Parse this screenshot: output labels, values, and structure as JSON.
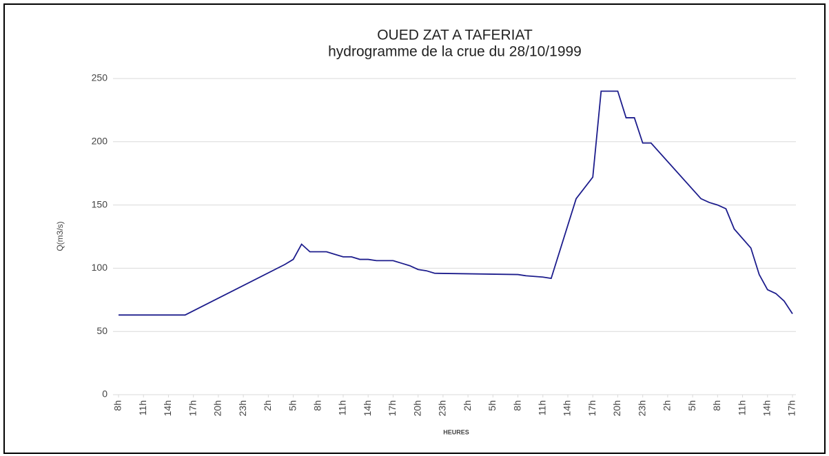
{
  "chart_data": {
    "type": "line",
    "title": "OUED ZAT A TAFERIAT",
    "subtitle": "hydrogramme de la crue du 28/10/1999",
    "x_label": "HEURES",
    "y_label": "Q(m3/s)",
    "x": [
      0,
      8,
      20,
      21,
      22,
      23,
      25,
      26,
      27,
      28,
      29,
      30,
      31,
      33,
      34,
      35,
      36,
      37,
      38,
      48,
      49,
      51,
      52,
      55,
      57,
      58,
      60,
      61,
      62,
      63,
      64,
      70,
      71,
      72,
      73,
      74,
      76,
      77,
      78,
      79,
      80,
      81
    ],
    "series": [
      {
        "name": "Q",
        "color": "#1c1c8c",
        "values": [
          63,
          63,
          103,
          107,
          119,
          113,
          113,
          111,
          109,
          109,
          107,
          107,
          106,
          106,
          104,
          102,
          99,
          98,
          96,
          95,
          94,
          93,
          92,
          155,
          172,
          240,
          240,
          219,
          219,
          199,
          199,
          155,
          152,
          150,
          147,
          131,
          116,
          95,
          83,
          80,
          74,
          64
        ]
      }
    ],
    "xlim": [
      0,
      81
    ],
    "xticks": [
      {
        "value": 0,
        "label": "8h"
      },
      {
        "value": 3,
        "label": "11h"
      },
      {
        "value": 6,
        "label": "14h"
      },
      {
        "value": 9,
        "label": "17h"
      },
      {
        "value": 12,
        "label": "20h"
      },
      {
        "value": 15,
        "label": "23h"
      },
      {
        "value": 18,
        "label": "2h"
      },
      {
        "value": 21,
        "label": "5h"
      },
      {
        "value": 24,
        "label": "8h"
      },
      {
        "value": 27,
        "label": "11h"
      },
      {
        "value": 30,
        "label": "14h"
      },
      {
        "value": 33,
        "label": "17h"
      },
      {
        "value": 36,
        "label": "20h"
      },
      {
        "value": 39,
        "label": "23h"
      },
      {
        "value": 42,
        "label": "2h"
      },
      {
        "value": 45,
        "label": "5h"
      },
      {
        "value": 48,
        "label": "8h"
      },
      {
        "value": 51,
        "label": "11h"
      },
      {
        "value": 54,
        "label": "14h"
      },
      {
        "value": 57,
        "label": "17h"
      },
      {
        "value": 60,
        "label": "20h"
      },
      {
        "value": 63,
        "label": "23h"
      },
      {
        "value": 66,
        "label": "2h"
      },
      {
        "value": 69,
        "label": "5h"
      },
      {
        "value": 72,
        "label": "8h"
      },
      {
        "value": 75,
        "label": "11h"
      },
      {
        "value": 78,
        "label": "14h"
      },
      {
        "value": 81,
        "label": "17h"
      }
    ],
    "ylim": [
      0,
      250
    ],
    "yticks": [
      0,
      50,
      100,
      150,
      200,
      250
    ],
    "grid": true
  }
}
